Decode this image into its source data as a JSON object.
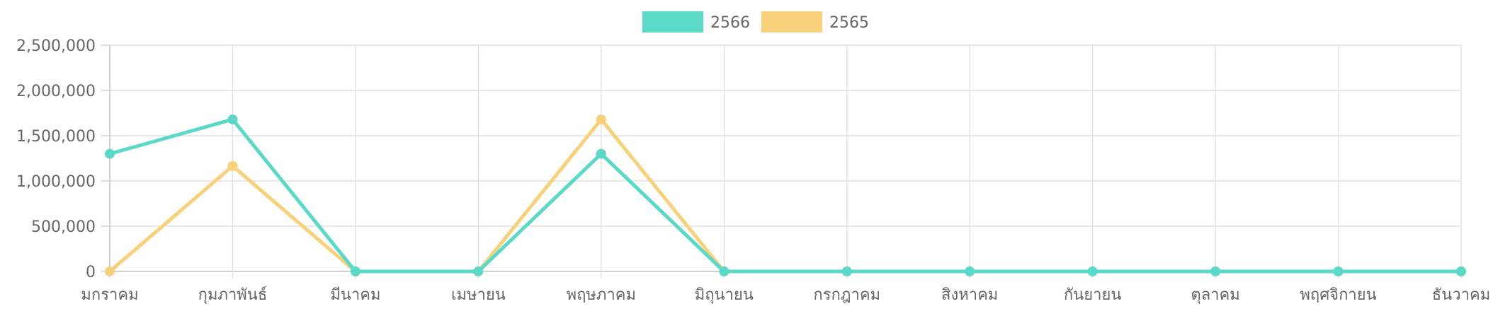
{
  "chart_data": {
    "type": "line",
    "categories": [
      "มกราคม",
      "กุมภาพันธ์",
      "มีนาคม",
      "เมษายน",
      "พฤษภาคม",
      "มิถุนายน",
      "กรกฎาคม",
      "สิงหาคม",
      "กันยายน",
      "ตุลาคม",
      "พฤศจิกายน",
      "ธันวาคม"
    ],
    "series": [
      {
        "name": "2566",
        "color": "#5ad8c8",
        "values": [
          1300000,
          1680000,
          0,
          0,
          1300000,
          0,
          0,
          0,
          0,
          0,
          0,
          0
        ]
      },
      {
        "name": "2565",
        "color": "#f9d17a",
        "values": [
          0,
          1165000,
          0,
          0,
          1680000,
          0,
          null,
          null,
          null,
          null,
          null,
          null
        ]
      }
    ],
    "ylim": [
      0,
      2500000
    ],
    "yticks": [
      0,
      500000,
      1000000,
      1500000,
      2000000,
      2500000
    ],
    "ytick_labels": [
      "0",
      "500,000",
      "1,000,000",
      "1,500,000",
      "2,000,000",
      "2,500,000"
    ],
    "grid": true,
    "legend_position": "top-center"
  }
}
